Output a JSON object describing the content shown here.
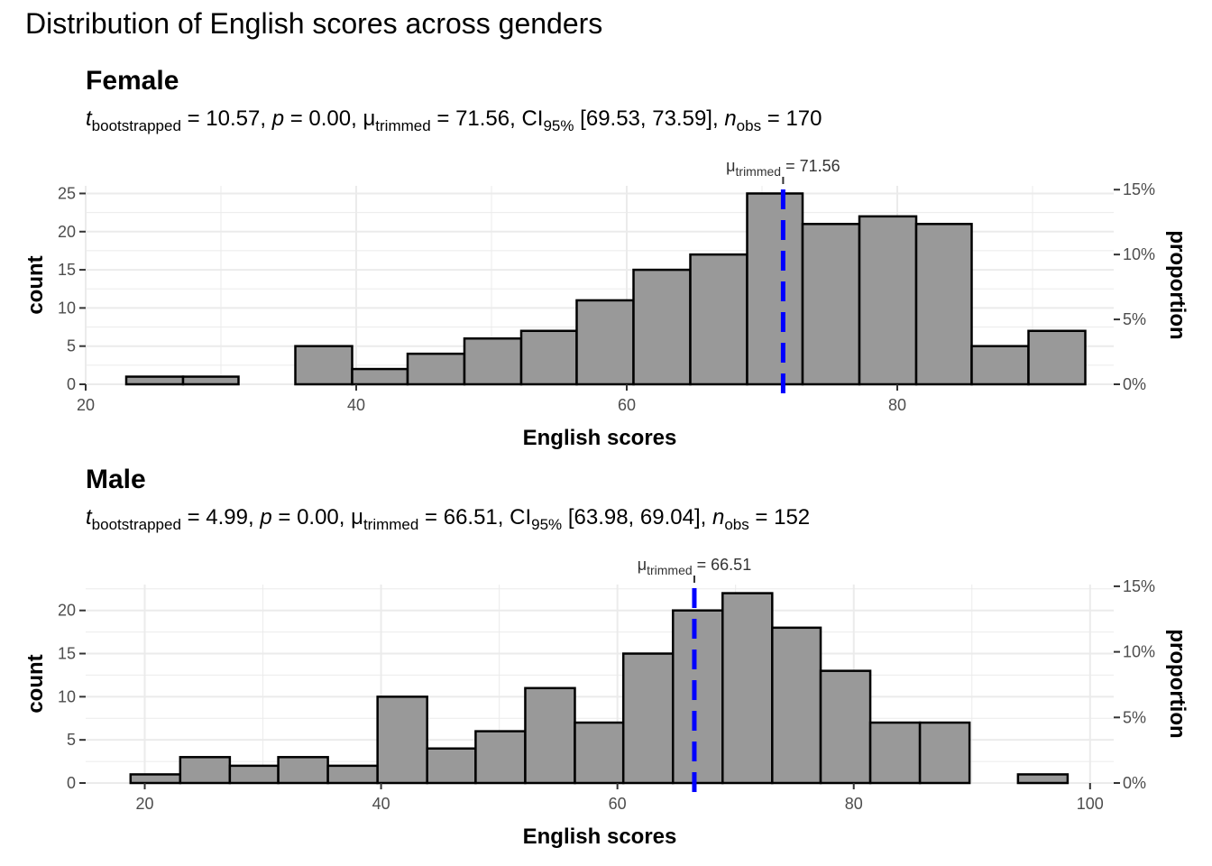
{
  "title": "Distribution of English scores across genders",
  "chart_data": [
    {
      "type": "bar",
      "facet": "Female",
      "subtitle": {
        "t_symbol": "t",
        "t_sub": "bootstrapped",
        "t_value": "10.57",
        "p_symbol": "p",
        "p_value": "0.00",
        "mu_symbol": "μ",
        "mu_sub": "trimmed",
        "mu_value": "71.56",
        "ci_label": "CI",
        "ci_sub": "95%",
        "ci_value": "[69.53, 73.59]",
        "n_symbol": "n",
        "n_sub": "obs",
        "n_value": "170"
      },
      "mean_annotation": {
        "symbol": "μ",
        "sub": "trimmed",
        "value": "71.56"
      },
      "mean": 71.56,
      "xlabel": "English scores",
      "ylabel": "count",
      "y2label": "proportion",
      "xlim": [
        20,
        96
      ],
      "ylim": [
        0,
        26
      ],
      "x_ticks": [
        20,
        40,
        60,
        80
      ],
      "y_ticks": [
        0,
        5,
        10,
        15,
        20,
        25
      ],
      "y2_ticks": [
        {
          "value": 0,
          "label": "0%"
        },
        {
          "value": 0.05,
          "label": "5%"
        },
        {
          "value": 0.1,
          "label": "10%"
        },
        {
          "value": 0.15,
          "label": "15%"
        }
      ],
      "y2_total": 170,
      "bins": [
        {
          "x0": 23.0,
          "x1": 27.2,
          "count": 1
        },
        {
          "x0": 27.2,
          "x1": 31.3,
          "count": 1
        },
        {
          "x0": 31.3,
          "x1": 35.5,
          "count": 0
        },
        {
          "x0": 35.5,
          "x1": 39.7,
          "count": 5
        },
        {
          "x0": 39.7,
          "x1": 43.8,
          "count": 2
        },
        {
          "x0": 43.8,
          "x1": 48.0,
          "count": 4
        },
        {
          "x0": 48.0,
          "x1": 52.2,
          "count": 6
        },
        {
          "x0": 52.2,
          "x1": 56.3,
          "count": 7
        },
        {
          "x0": 56.3,
          "x1": 60.5,
          "count": 11
        },
        {
          "x0": 60.5,
          "x1": 64.7,
          "count": 15
        },
        {
          "x0": 64.7,
          "x1": 68.9,
          "count": 17
        },
        {
          "x0": 68.9,
          "x1": 73.0,
          "count": 25
        },
        {
          "x0": 73.0,
          "x1": 77.2,
          "count": 21
        },
        {
          "x0": 77.2,
          "x1": 81.4,
          "count": 22
        },
        {
          "x0": 81.4,
          "x1": 85.5,
          "count": 21
        },
        {
          "x0": 85.5,
          "x1": 89.7,
          "count": 5
        },
        {
          "x0": 89.7,
          "x1": 93.9,
          "count": 7
        }
      ]
    },
    {
      "type": "bar",
      "facet": "Male",
      "subtitle": {
        "t_symbol": "t",
        "t_sub": "bootstrapped",
        "t_value": "4.99",
        "p_symbol": "p",
        "p_value": "0.00",
        "mu_symbol": "μ",
        "mu_sub": "trimmed",
        "mu_value": "66.51",
        "ci_label": "CI",
        "ci_sub": "95%",
        "ci_value": "[63.98, 69.04]",
        "n_symbol": "n",
        "n_sub": "obs",
        "n_value": "152"
      },
      "mean_annotation": {
        "symbol": "μ",
        "sub": "trimmed",
        "value": "66.51"
      },
      "mean": 66.51,
      "xlabel": "English scores",
      "ylabel": "count",
      "y2label": "proportion",
      "xlim": [
        15,
        102
      ],
      "ylim": [
        0,
        23
      ],
      "x_ticks": [
        20,
        40,
        60,
        80,
        100
      ],
      "y_ticks": [
        0,
        5,
        10,
        15,
        20
      ],
      "y2_ticks": [
        {
          "value": 0,
          "label": "0%"
        },
        {
          "value": 0.05,
          "label": "5%"
        },
        {
          "value": 0.1,
          "label": "10%"
        },
        {
          "value": 0.15,
          "label": "15%"
        }
      ],
      "y2_total": 152,
      "bins": [
        {
          "x0": 18.8,
          "x1": 23.0,
          "count": 1
        },
        {
          "x0": 23.0,
          "x1": 27.2,
          "count": 3
        },
        {
          "x0": 27.2,
          "x1": 31.3,
          "count": 2
        },
        {
          "x0": 31.3,
          "x1": 35.5,
          "count": 3
        },
        {
          "x0": 35.5,
          "x1": 39.7,
          "count": 2
        },
        {
          "x0": 39.7,
          "x1": 43.9,
          "count": 10
        },
        {
          "x0": 43.9,
          "x1": 48.0,
          "count": 4
        },
        {
          "x0": 48.0,
          "x1": 52.2,
          "count": 6
        },
        {
          "x0": 52.2,
          "x1": 56.4,
          "count": 11
        },
        {
          "x0": 56.4,
          "x1": 60.5,
          "count": 7
        },
        {
          "x0": 60.5,
          "x1": 64.7,
          "count": 15
        },
        {
          "x0": 64.7,
          "x1": 68.9,
          "count": 20
        },
        {
          "x0": 68.9,
          "x1": 73.1,
          "count": 22
        },
        {
          "x0": 73.1,
          "x1": 77.2,
          "count": 18
        },
        {
          "x0": 77.2,
          "x1": 81.4,
          "count": 13
        },
        {
          "x0": 81.4,
          "x1": 85.6,
          "count": 7
        },
        {
          "x0": 85.6,
          "x1": 89.8,
          "count": 7
        },
        {
          "x0": 89.8,
          "x1": 93.9,
          "count": 0
        },
        {
          "x0": 93.9,
          "x1": 98.1,
          "count": 1
        }
      ]
    }
  ]
}
